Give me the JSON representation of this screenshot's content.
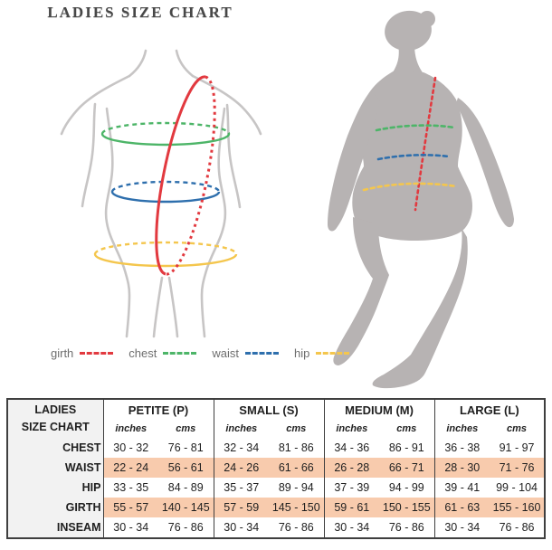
{
  "title": "LADIES SIZE CHART",
  "diagram": {
    "left_figure": "female-torso-front-outline-with-measurement-ellipses",
    "right_figure": "female-full-body-silhouette-walking",
    "outline_color": "#c7c5c5",
    "silhouette_color": "#b7b3b3"
  },
  "legend": {
    "items": [
      {
        "label": "girth",
        "color": "#e2393f"
      },
      {
        "label": "chest",
        "color": "#4db568"
      },
      {
        "label": "waist",
        "color": "#2e6fad"
      },
      {
        "label": "hip",
        "color": "#f4c64d"
      }
    ]
  },
  "chart_data": {
    "type": "table",
    "title": "LADIES SIZE CHART",
    "corner_label_line1": "LADIES",
    "corner_label_line2": "SIZE CHART",
    "sizes": [
      "PETITE (P)",
      "SMALL (S)",
      "MEDIUM (M)",
      "LARGE (L)"
    ],
    "units": [
      "inches",
      "cms"
    ],
    "highlight_color": "#f8cbad",
    "label_column_bg": "#f2f2f2",
    "highlighted_rows": [
      "WAIST",
      "GIRTH"
    ],
    "rows": [
      {
        "label": "CHEST",
        "highlight": false,
        "values": [
          [
            "30 - 32",
            "76 - 81"
          ],
          [
            "32 - 34",
            "81 - 86"
          ],
          [
            "34 - 36",
            "86 - 91"
          ],
          [
            "36 - 38",
            "91 - 97"
          ]
        ]
      },
      {
        "label": "WAIST",
        "highlight": true,
        "values": [
          [
            "22 - 24",
            "56 - 61"
          ],
          [
            "24 - 26",
            "61 - 66"
          ],
          [
            "26 - 28",
            "66 - 71"
          ],
          [
            "28 - 30",
            "71 - 76"
          ]
        ]
      },
      {
        "label": "HIP",
        "highlight": false,
        "values": [
          [
            "33 - 35",
            "84 - 89"
          ],
          [
            "35 - 37",
            "89 - 94"
          ],
          [
            "37 - 39",
            "94 - 99"
          ],
          [
            "39 - 41",
            "99 - 104"
          ]
        ]
      },
      {
        "label": "GIRTH",
        "highlight": true,
        "values": [
          [
            "55 - 57",
            "140 - 145"
          ],
          [
            "57 - 59",
            "145 - 150"
          ],
          [
            "59 - 61",
            "150 - 155"
          ],
          [
            "61 - 63",
            "155 - 160"
          ]
        ]
      },
      {
        "label": "INSEAM",
        "highlight": false,
        "values": [
          [
            "30 - 34",
            "76 - 86"
          ],
          [
            "30 - 34",
            "76 - 86"
          ],
          [
            "30 - 34",
            "76 - 86"
          ],
          [
            "30 - 34",
            "76 - 86"
          ]
        ]
      }
    ]
  }
}
